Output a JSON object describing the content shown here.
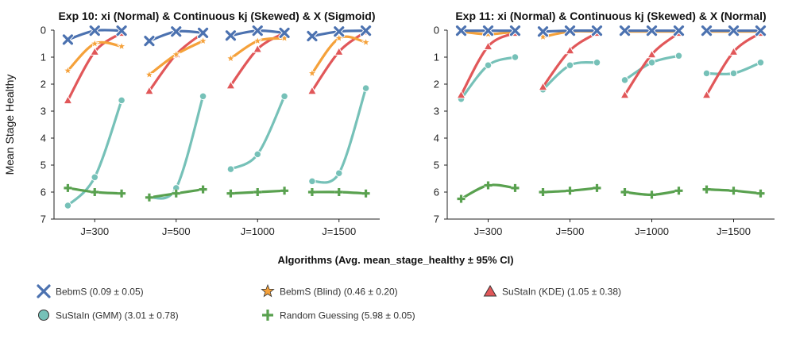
{
  "chart_data": {
    "type": "line",
    "xlabel": "Algorithms (Avg. mean_stage_healthy ± 95% CI)",
    "ylabel": "Mean Stage Healthy",
    "ylim": [
      7,
      0
    ],
    "yticks": [
      0,
      1,
      2,
      3,
      4,
      5,
      6,
      7
    ],
    "y_inverted": true,
    "legend_placement": "bottom",
    "legend": [
      {
        "key": "bebms",
        "label": "BebmS (0.09 ± 0.05)"
      },
      {
        "key": "bebms_blind",
        "label": "BebmS (Blind) (0.46 ± 0.20)"
      },
      {
        "key": "sustain_kde",
        "label": "SuStaIn (KDE) (1.05 ± 0.38)"
      },
      {
        "key": "sustain_gmm",
        "label": "SuStaIn (GMM) (3.01 ± 0.78)"
      },
      {
        "key": "random",
        "label": "Random Guessing (5.98 ± 0.05)"
      }
    ],
    "series_styles": {
      "bebms": {
        "color": "#4c72b0",
        "marker": "x"
      },
      "bebms_blind": {
        "color": "#f5a13a",
        "marker": "star"
      },
      "sustain_kde": {
        "color": "#e15759",
        "marker": "triangle"
      },
      "sustain_gmm": {
        "color": "#76c1b8",
        "marker": "circle"
      },
      "random": {
        "color": "#59a14f",
        "marker": "plus"
      }
    },
    "panels": [
      {
        "title": "Exp 10: xi (Normal) & Continuous kj (Skewed) & X (Sigmoid)",
        "categories": [
          "J=300",
          "J=500",
          "J=1000",
          "J=1500"
        ],
        "series": {
          "bebms": [
            [
              0.35,
              0.02,
              0.02
            ],
            [
              0.4,
              0.05,
              0.1
            ],
            [
              0.2,
              0.02,
              0.1
            ],
            [
              0.22,
              0.05,
              0.02
            ]
          ],
          "bebms_blind": [
            [
              1.5,
              0.5,
              0.6
            ],
            [
              1.65,
              0.9,
              0.4
            ],
            [
              1.05,
              0.4,
              0.3
            ],
            [
              1.6,
              0.3,
              0.45
            ]
          ],
          "sustain_kde": [
            [
              2.6,
              0.8,
              0.1
            ],
            [
              2.25,
              0.9,
              0.1
            ],
            [
              2.05,
              0.7,
              0.1
            ],
            [
              2.25,
              0.8,
              0.05
            ]
          ],
          "sustain_gmm": [
            [
              6.5,
              5.45,
              2.6
            ],
            [
              6.2,
              5.85,
              2.45
            ],
            [
              5.15,
              4.6,
              2.45
            ],
            [
              5.6,
              5.3,
              2.15
            ]
          ],
          "random": [
            [
              5.85,
              6.0,
              6.05
            ],
            [
              6.2,
              6.05,
              5.9
            ],
            [
              6.05,
              6.0,
              5.95
            ],
            [
              6.0,
              6.0,
              6.05
            ]
          ]
        }
      },
      {
        "title": "Exp 11: xi (Normal) & Continuous kj (Skewed) & X (Normal)",
        "categories": [
          "J=300",
          "J=500",
          "J=1000",
          "J=1500"
        ],
        "series": {
          "bebms": [
            [
              0.02,
              0.02,
              0.02
            ],
            [
              0.05,
              0.02,
              0.02
            ],
            [
              0.02,
              0.02,
              0.02
            ],
            [
              0.02,
              0.02,
              0.02
            ]
          ],
          "bebms_blind": [
            [
              0.05,
              0.15,
              0.05
            ],
            [
              0.25,
              0.05,
              0.05
            ],
            [
              0.05,
              0.05,
              0.05
            ],
            [
              0.05,
              0.05,
              0.05
            ]
          ],
          "sustain_kde": [
            [
              2.4,
              0.6,
              0.1
            ],
            [
              2.1,
              0.75,
              0.1
            ],
            [
              2.4,
              0.9,
              0.1
            ],
            [
              2.4,
              0.8,
              0.1
            ]
          ],
          "sustain_gmm": [
            [
              2.55,
              1.3,
              1.0
            ],
            [
              2.2,
              1.3,
              1.2
            ],
            [
              1.85,
              1.2,
              0.95
            ],
            [
              1.6,
              1.6,
              1.2
            ]
          ],
          "random": [
            [
              6.25,
              5.75,
              5.85
            ],
            [
              6.0,
              5.95,
              5.85
            ],
            [
              6.0,
              6.1,
              5.95
            ],
            [
              5.9,
              5.95,
              6.05
            ]
          ]
        }
      }
    ]
  }
}
